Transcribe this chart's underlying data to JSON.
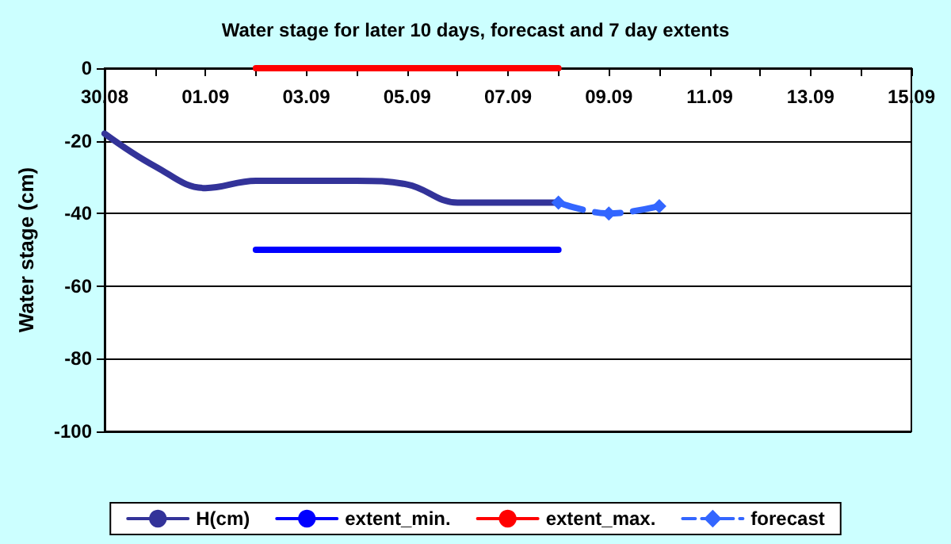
{
  "chart_data": {
    "type": "line",
    "title": "Water stage for later 10 days, forecast and 7 day extents",
    "ylabel": "Water stage (cm)",
    "xlim": [
      "--08-30",
      "--09-15"
    ],
    "xticks": [
      {
        "value": "--08-30",
        "label": "30.08"
      },
      {
        "value": "--08-31",
        "label": null
      },
      {
        "value": "--09-01",
        "label": "01.09"
      },
      {
        "value": "--09-02",
        "label": null
      },
      {
        "value": "--09-03",
        "label": "03.09"
      },
      {
        "value": "--09-04",
        "label": null
      },
      {
        "value": "--09-05",
        "label": "05.09"
      },
      {
        "value": "--09-06",
        "label": null
      },
      {
        "value": "--09-07",
        "label": "07.09"
      },
      {
        "value": "--09-08",
        "label": null
      },
      {
        "value": "--09-09",
        "label": "09.09"
      },
      {
        "value": "--09-10",
        "label": null
      },
      {
        "value": "--09-11",
        "label": "11.09"
      },
      {
        "value": "--09-12",
        "label": null
      },
      {
        "value": "--09-13",
        "label": "13.09"
      },
      {
        "value": "--09-14",
        "label": null
      },
      {
        "value": "--09-15",
        "label": "15.09"
      }
    ],
    "ylim": [
      -100,
      0
    ],
    "yticks": [
      -100,
      -80,
      -60,
      -40,
      -20,
      0
    ],
    "grid": "y",
    "legend": "bottom",
    "series": [
      {
        "name": "H(cm)",
        "color": "#333399",
        "marker": "none",
        "line_style": "solid",
        "x": [
          "--08-30",
          "--08-31",
          "--09-01",
          "--09-02",
          "--09-03",
          "--09-04",
          "--09-05",
          "--09-06",
          "--09-07",
          "--09-08"
        ],
        "values": [
          -18,
          -27,
          -33,
          -31,
          -31,
          -31,
          -32,
          -37,
          -37,
          -37
        ]
      },
      {
        "name": "extent_min.",
        "color": "#0000ff",
        "marker": "none",
        "line_style": "solid",
        "x": [
          "--09-02",
          "--09-08"
        ],
        "values": [
          -50,
          -50
        ]
      },
      {
        "name": "extent_max.",
        "color": "#ff0000",
        "marker": "none",
        "line_style": "solid",
        "x": [
          "--09-02",
          "--09-08"
        ],
        "values": [
          0,
          0
        ]
      },
      {
        "name": "forecast",
        "color": "#3366ff",
        "marker": "diamond",
        "line_style": "dashed",
        "x": [
          "--09-08",
          "--09-09",
          "--09-10"
        ],
        "values": [
          -37,
          -40,
          -38
        ]
      }
    ]
  }
}
